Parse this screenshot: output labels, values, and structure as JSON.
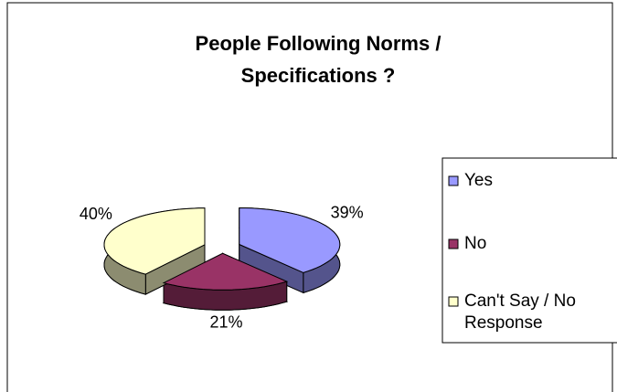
{
  "chart_data": {
    "type": "pie3d",
    "title": "People Following Norms / Specifications ?",
    "categories": [
      "Yes",
      "No",
      "Can't Say / No Response"
    ],
    "values": [
      39,
      21,
      40
    ],
    "value_labels": [
      "39%",
      "21%",
      "40%"
    ],
    "colors": [
      "#9999ff",
      "#993366",
      "#ffffcc"
    ],
    "legend": "right"
  }
}
